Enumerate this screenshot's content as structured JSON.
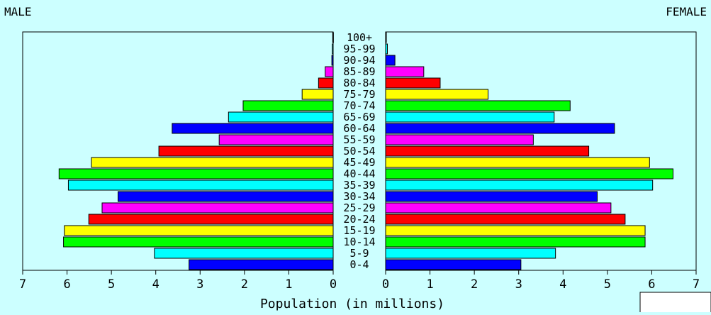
{
  "chart_data": {
    "type": "bar",
    "orientation": "horizontal-pyramid",
    "xlabel": "Population (in millions)",
    "left_label": "MALE",
    "right_label": "FEMALE",
    "xlim": [
      0,
      7
    ],
    "x_ticks": [
      0,
      1,
      2,
      3,
      4,
      5,
      6,
      7
    ],
    "categories": [
      "0-4",
      "5-9",
      "10-14",
      "15-19",
      "20-24",
      "25-29",
      "30-34",
      "35-39",
      "40-44",
      "45-49",
      "50-54",
      "55-59",
      "60-64",
      "65-69",
      "70-74",
      "75-79",
      "80-84",
      "85-89",
      "90-94",
      "95-99",
      "100+"
    ],
    "series": [
      {
        "name": "MALE",
        "values": [
          3.25,
          4.03,
          6.08,
          6.06,
          5.51,
          5.21,
          4.85,
          5.97,
          6.18,
          5.45,
          3.93,
          2.57,
          3.63,
          2.36,
          2.03,
          0.7,
          0.33,
          0.18,
          0.03,
          0.02,
          0.01
        ]
      },
      {
        "name": "FEMALE",
        "values": [
          3.05,
          3.83,
          5.85,
          5.85,
          5.4,
          5.08,
          4.77,
          6.02,
          6.48,
          5.95,
          4.58,
          3.33,
          5.16,
          3.8,
          4.16,
          2.31,
          1.23,
          0.86,
          0.21,
          0.04,
          0.01
        ]
      }
    ],
    "bar_colors": [
      "#0000ff",
      "#00ffff",
      "#00ff00",
      "#ffff00",
      "#ff0000",
      "#ff00ff"
    ],
    "grid": false
  }
}
